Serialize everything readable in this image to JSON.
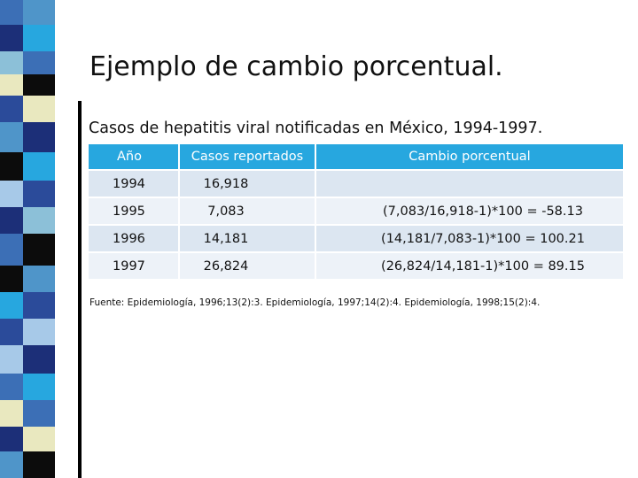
{
  "slide": {
    "title": "Ejemplo de cambio porcentual.",
    "subtitle": "Casos de hepatitis viral notificadas en México, 1994-1997.",
    "source": "Fuente: Epidemiología, 1996;13(2):3. Epidemiología, 1997;14(2):4. Epidemiología, 1998;15(2):4."
  },
  "table": {
    "headers": [
      "Año",
      "Casos reportados",
      "Cambio porcentual"
    ],
    "rows": [
      [
        "1994",
        "16,918",
        ""
      ],
      [
        "1995",
        "7,083",
        "(7,083/16,918-1)*100 = -58.13"
      ],
      [
        "1996",
        "14,181",
        "(14,181/7,083-1)*100 = 100.21"
      ],
      [
        "1997",
        "26,824",
        "(26,824/14,181-1)*100 = 89.15"
      ]
    ]
  },
  "colors": {
    "header_bg": "#27a7df",
    "row_odd": "#dce6f1",
    "row_even": "#edf2f8",
    "stripe_palette": [
      "#3c6fb6",
      "#1c2f78",
      "#4f95c9",
      "#27a7df",
      "#e9e8bf",
      "#2b4b9a",
      "#0c0c0c",
      "#a7c9e8",
      "#8cc0d8"
    ]
  }
}
